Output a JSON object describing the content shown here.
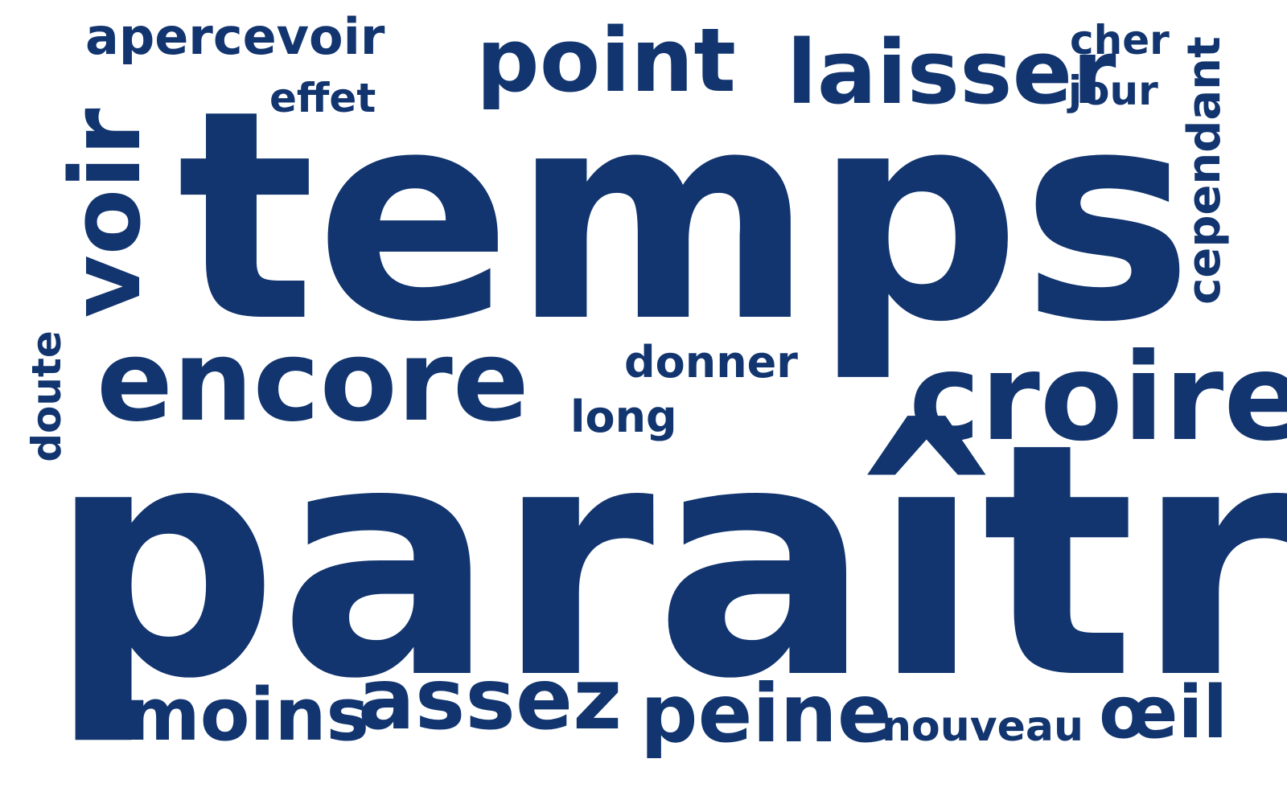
{
  "colors": {
    "background": "#ffffff",
    "text": "#12356f"
  },
  "words": [
    {
      "text": "temps"
    },
    {
      "text": "paraître"
    },
    {
      "text": "encore"
    },
    {
      "text": "croire"
    },
    {
      "text": "voir"
    },
    {
      "text": "point"
    },
    {
      "text": "laisser"
    },
    {
      "text": "assez"
    },
    {
      "text": "peine"
    },
    {
      "text": "moins"
    },
    {
      "text": "apercevoir"
    },
    {
      "text": "œil"
    },
    {
      "text": "cependant"
    },
    {
      "text": "donner"
    },
    {
      "text": "nouveau"
    },
    {
      "text": "cher"
    },
    {
      "text": "jour"
    },
    {
      "text": "long"
    },
    {
      "text": "effet"
    },
    {
      "text": "doute"
    }
  ]
}
